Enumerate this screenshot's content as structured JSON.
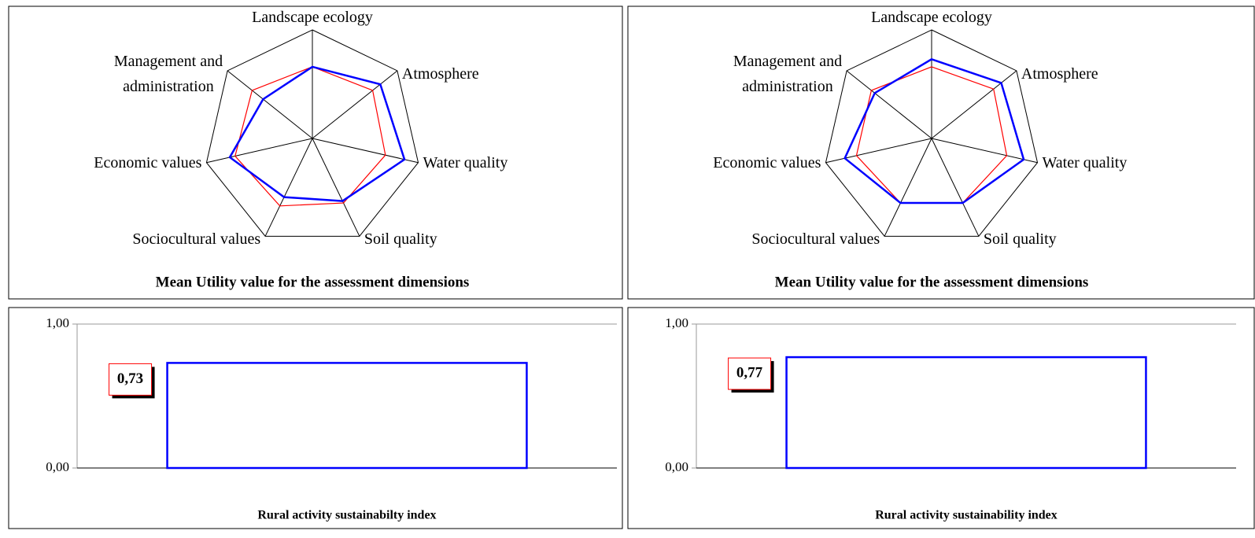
{
  "chart_data": [
    {
      "type": "radar",
      "title": "Mean Utility value for the assessment dimensions",
      "categories": [
        "Landscape ecology",
        "Atmosphere",
        "Water quality",
        "Soil quality",
        "Sociocultural values",
        "Economic values",
        "Management and\nadministration"
      ],
      "rlim": [
        0,
        1
      ],
      "series": [
        {
          "color": "#ff0000",
          "values": [
            0.66,
            0.71,
            0.69,
            0.66,
            0.69,
            0.73,
            0.71
          ]
        },
        {
          "color": "#0000ff",
          "values": [
            0.66,
            0.8,
            0.87,
            0.64,
            0.6,
            0.78,
            0.58
          ]
        }
      ]
    },
    {
      "type": "radar",
      "title": "Mean Utility value for the assessment dimensions",
      "categories": [
        "Landscape ecology",
        "Atmosphere",
        "Water quality",
        "Soil quality",
        "Sociocultural values",
        "Economic values",
        "Management and\nadministration"
      ],
      "rlim": [
        0,
        1
      ],
      "series": [
        {
          "color": "#ff0000",
          "values": [
            0.66,
            0.73,
            0.71,
            0.66,
            0.66,
            0.71,
            0.71
          ]
        },
        {
          "color": "#0000ff",
          "values": [
            0.73,
            0.82,
            0.87,
            0.66,
            0.66,
            0.82,
            0.67
          ]
        }
      ]
    },
    {
      "type": "bar",
      "title": "Rural activity sustainabilty index",
      "values": [
        0.73
      ],
      "value_labels": [
        "0,73"
      ],
      "color": "#0000ff",
      "label_border_color": "#ff0000",
      "ylim": [
        0,
        1
      ],
      "yticks": [
        {
          "value": 0,
          "label": "0,00"
        },
        {
          "value": 1,
          "label": "1,00"
        }
      ]
    },
    {
      "type": "bar",
      "title": "Rural activity sustainability index",
      "values": [
        0.77
      ],
      "value_labels": [
        "0,77"
      ],
      "color": "#0000ff",
      "label_border_color": "#ff0000",
      "ylim": [
        0,
        1
      ],
      "yticks": [
        {
          "value": 0,
          "label": "0,00"
        },
        {
          "value": 1,
          "label": "1,00"
        }
      ]
    }
  ]
}
